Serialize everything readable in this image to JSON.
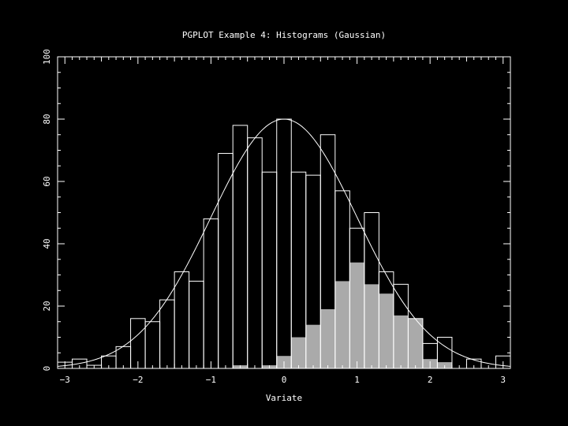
{
  "chart_data": {
    "type": "bar",
    "title": "PGPLOT Example 4:  Histograms (Gaussian)",
    "xlabel": "Variate",
    "ylabel": "",
    "xlim": [
      -3.1,
      3.1
    ],
    "ylim": [
      0,
      100
    ],
    "xticks": [
      -3,
      -2,
      -1,
      0,
      1,
      2,
      3
    ],
    "yticks": [
      0,
      20,
      40,
      60,
      80,
      100
    ],
    "bin_width": 0.2,
    "grid": false,
    "colors": {
      "background": "#000000",
      "foreground": "#ffffff",
      "fill": "#aaaaaa"
    },
    "series": [
      {
        "style": "outline",
        "bin_left_edges": [
          -3.1,
          -2.9,
          -2.7,
          -2.5,
          -2.3,
          -2.1,
          -1.9,
          -1.7,
          -1.5,
          -1.3,
          -1.1,
          -0.9,
          -0.7,
          -0.5,
          -0.3,
          -0.1,
          0.1,
          0.3,
          0.5,
          0.7,
          0.9,
          1.1,
          1.3,
          1.5,
          1.7,
          1.9,
          2.1,
          2.3,
          2.5,
          2.7,
          2.9
        ],
        "values": [
          2,
          3,
          1,
          4,
          7,
          16,
          15,
          22,
          31,
          28,
          48,
          69,
          78,
          74,
          63,
          80,
          63,
          62,
          75,
          57,
          45,
          50,
          31,
          27,
          16,
          8,
          10,
          0,
          3,
          0,
          4
        ]
      },
      {
        "style": "filled",
        "bin_left_edges": [
          -0.7,
          -0.5,
          -0.3,
          -0.1,
          0.1,
          0.3,
          0.5,
          0.7,
          0.9,
          1.1,
          1.3,
          1.5,
          1.7,
          1.9,
          2.1
        ],
        "values": [
          1,
          0,
          1,
          4,
          10,
          14,
          19,
          28,
          34,
          27,
          24,
          17,
          16,
          3,
          2
        ]
      },
      {
        "style": "curve",
        "curve": "gaussian",
        "peak": 80,
        "mean": 0,
        "sigma": 1
      }
    ]
  }
}
